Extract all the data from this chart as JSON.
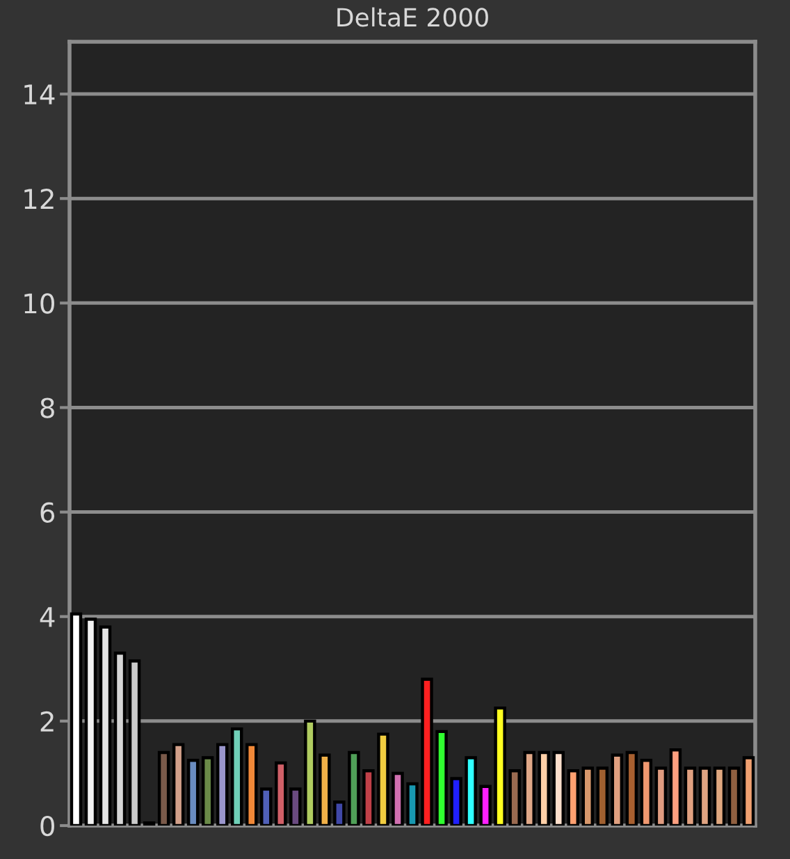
{
  "chart_data": {
    "type": "bar",
    "title": "DeltaE 2000",
    "categories": [
      null,
      null,
      null,
      null,
      null,
      null,
      null,
      null,
      null,
      null,
      null,
      null,
      null,
      null,
      null,
      null,
      null,
      null,
      null,
      null,
      null,
      null,
      null,
      null,
      null,
      null,
      null,
      null,
      null,
      null,
      null,
      null,
      null,
      null,
      null,
      null,
      null,
      null,
      null,
      null,
      null,
      null,
      null,
      null,
      null,
      null,
      null
    ],
    "values": [
      4.05,
      3.95,
      3.8,
      3.3,
      3.15,
      0.05,
      1.4,
      1.55,
      1.25,
      1.3,
      1.55,
      1.85,
      1.55,
      0.7,
      1.2,
      0.7,
      2.0,
      1.35,
      0.45,
      1.4,
      1.05,
      1.75,
      1.0,
      0.8,
      2.8,
      1.8,
      0.9,
      1.3,
      0.75,
      2.25,
      1.05,
      1.4,
      1.4,
      1.4,
      1.05,
      1.1,
      1.1,
      1.35,
      1.4,
      1.25,
      1.1,
      1.45,
      1.1,
      1.1,
      1.1,
      1.1,
      1.3
    ],
    "colors": [
      "#ffffff",
      "#f2f2f2",
      "#e6e6e6",
      "#d6d6d6",
      "#cacaca",
      "#5a5a5a",
      "#7a5a4a",
      "#d2a08a",
      "#6a8cc0",
      "#6a8a48",
      "#9a96cc",
      "#70d0b8",
      "#f08838",
      "#5060b8",
      "#d06068",
      "#6a4a80",
      "#b0cc60",
      "#f0b048",
      "#4048a8",
      "#50a058",
      "#c04048",
      "#f0cc40",
      "#d070b0",
      "#1898b0",
      "#ff2020",
      "#30ff30",
      "#2020ff",
      "#30ffff",
      "#ff20ff",
      "#ffff20",
      "#9a6a50",
      "#e0a888",
      "#ffd0a8",
      "#ffe0cc",
      "#ffa070",
      "#d8986c",
      "#a06030",
      "#e0a080",
      "#a86030",
      "#f09870",
      "#e09c80",
      "#ffa080",
      "#e0a080",
      "#e0a482",
      "#e0a880",
      "#906040",
      "#f0a070"
    ],
    "ylim": [
      0,
      15
    ],
    "yticks": [
      0,
      2,
      4,
      6,
      8,
      10,
      12,
      14
    ],
    "grid": "y"
  }
}
